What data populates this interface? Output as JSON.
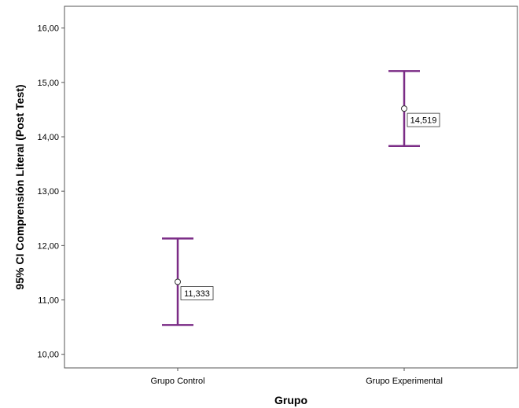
{
  "chart_data": {
    "type": "errorbar",
    "xlabel": "Grupo",
    "ylabel": "95% CI Comprensión Literal (Post Test)",
    "ylim": [
      9.75,
      16.4
    ],
    "yticks": [
      10,
      11,
      12,
      13,
      14,
      15,
      16
    ],
    "ytick_labels": [
      "10,00",
      "11,00",
      "12,00",
      "13,00",
      "14,00",
      "15,00",
      "16,00"
    ],
    "categories": [
      "Grupo Control",
      "Grupo Experimental"
    ],
    "series": [
      {
        "means": [
          11.333,
          14.519
        ],
        "lower": [
          10.54,
          13.83
        ],
        "upper": [
          12.13,
          15.21
        ],
        "mean_labels": [
          "11,333",
          "14,519"
        ]
      }
    ],
    "color": "#7b2c86",
    "grid": false,
    "legend": "none"
  }
}
